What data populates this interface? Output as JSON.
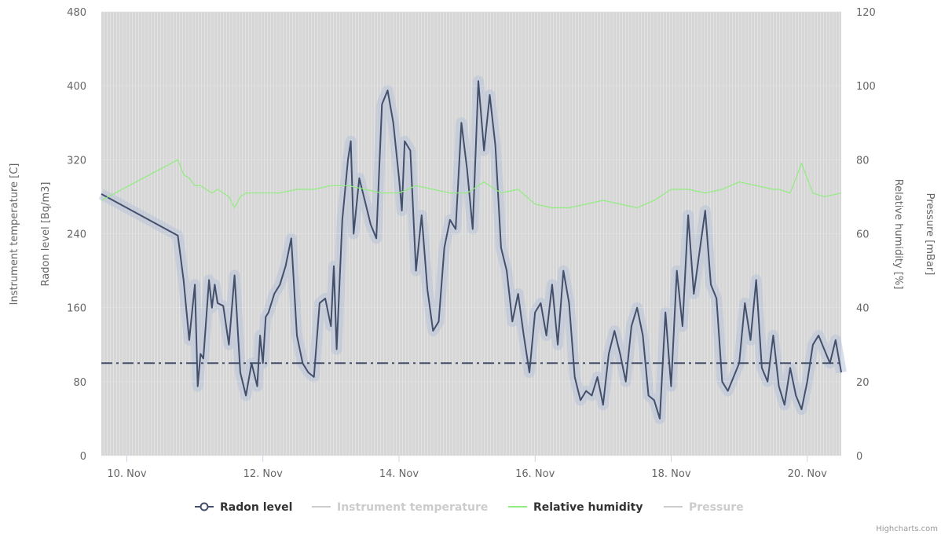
{
  "credits": "Highcharts.com",
  "colors": {
    "radon": "#434f6b",
    "humidity": "#90ed7d",
    "temperature": "#cfcfcf",
    "pressure": "#cfcfcf",
    "plot_background": "#d6d6d6",
    "grid_stripe": "#e3e3e3",
    "band": "#b8c4da",
    "threshold": "#434f6b"
  },
  "chart_data": {
    "type": "line",
    "x_axis": {
      "type": "datetime",
      "min": "2023-11-09T15:00",
      "max": "2023-11-20T12:00",
      "tick_labels": [
        "10. Nov",
        "12. Nov",
        "14. Nov",
        "16. Nov",
        "18. Nov",
        "20. Nov"
      ]
    },
    "y_axes": [
      {
        "id": "radon",
        "title": "Radon level [Bq/m3]",
        "side": "left",
        "min": 0,
        "max": 480,
        "ticks": [
          "0",
          "80",
          "160",
          "240",
          "320",
          "400",
          "480"
        ]
      },
      {
        "id": "temperature",
        "title": "Instrument temperature [C]",
        "side": "left",
        "ticks": []
      },
      {
        "id": "humidity",
        "title": "Relative humidity [%]",
        "side": "right",
        "min": 0,
        "max": 120,
        "ticks": [
          "0",
          "20",
          "40",
          "60",
          "80",
          "100",
          "120"
        ]
      },
      {
        "id": "pressure",
        "title": "Pressure [mBar]",
        "side": "right",
        "ticks": []
      }
    ],
    "threshold": {
      "axis": "radon",
      "value": 100,
      "style": "dash-dot"
    },
    "legend": {
      "position": "bottom-center"
    },
    "series": [
      {
        "name": "Radon level",
        "axis": "radon",
        "visible": true,
        "marker": "circle",
        "x": [
          "2023-11-09T15:00",
          "2023-11-10T18:00",
          "2023-11-10T20:00",
          "2023-11-10T22:00",
          "2023-11-11T00:00",
          "2023-11-11T01:00",
          "2023-11-11T02:00",
          "2023-11-11T03:00",
          "2023-11-11T05:00",
          "2023-11-11T06:00",
          "2023-11-11T07:00",
          "2023-11-11T08:00",
          "2023-11-11T10:00",
          "2023-11-11T12:00",
          "2023-11-11T14:00",
          "2023-11-11T16:00",
          "2023-11-11T18:00",
          "2023-11-11T20:00",
          "2023-11-11T22:00",
          "2023-11-11T23:00",
          "2023-11-12T00:00",
          "2023-11-12T01:00",
          "2023-11-12T02:00",
          "2023-11-12T04:00",
          "2023-11-12T06:00",
          "2023-11-12T08:00",
          "2023-11-12T10:00",
          "2023-11-12T12:00",
          "2023-11-12T14:00",
          "2023-11-12T16:00",
          "2023-11-12T18:00",
          "2023-11-12T20:00",
          "2023-11-12T22:00",
          "2023-11-13T00:00",
          "2023-11-13T01:00",
          "2023-11-13T02:00",
          "2023-11-13T04:00",
          "2023-11-13T06:00",
          "2023-11-13T07:00",
          "2023-11-13T08:00",
          "2023-11-13T10:00",
          "2023-11-13T12:00",
          "2023-11-13T14:00",
          "2023-11-13T16:00",
          "2023-11-13T18:00",
          "2023-11-13T20:00",
          "2023-11-13T22:00",
          "2023-11-14T00:00",
          "2023-11-14T01:00",
          "2023-11-14T02:00",
          "2023-11-14T04:00",
          "2023-11-14T06:00",
          "2023-11-14T08:00",
          "2023-11-14T10:00",
          "2023-11-14T12:00",
          "2023-11-14T14:00",
          "2023-11-14T16:00",
          "2023-11-14T18:00",
          "2023-11-14T20:00",
          "2023-11-14T22:00",
          "2023-11-15T00:00",
          "2023-11-15T02:00",
          "2023-11-15T04:00",
          "2023-11-15T06:00",
          "2023-11-15T08:00",
          "2023-11-15T10:00",
          "2023-11-15T12:00",
          "2023-11-15T14:00",
          "2023-11-15T16:00",
          "2023-11-15T18:00",
          "2023-11-15T20:00",
          "2023-11-15T22:00",
          "2023-11-16T00:00",
          "2023-11-16T02:00",
          "2023-11-16T04:00",
          "2023-11-16T06:00",
          "2023-11-16T08:00",
          "2023-11-16T10:00",
          "2023-11-16T12:00",
          "2023-11-16T14:00",
          "2023-11-16T16:00",
          "2023-11-16T18:00",
          "2023-11-16T20:00",
          "2023-11-16T22:00",
          "2023-11-17T00:00",
          "2023-11-17T02:00",
          "2023-11-17T04:00",
          "2023-11-17T06:00",
          "2023-11-17T08:00",
          "2023-11-17T10:00",
          "2023-11-17T12:00",
          "2023-11-17T14:00",
          "2023-11-17T16:00",
          "2023-11-17T18:00",
          "2023-11-17T20:00",
          "2023-11-17T22:00",
          "2023-11-18T00:00",
          "2023-11-18T02:00",
          "2023-11-18T04:00",
          "2023-11-18T06:00",
          "2023-11-18T08:00",
          "2023-11-18T10:00",
          "2023-11-18T12:00",
          "2023-11-18T14:00",
          "2023-11-18T16:00",
          "2023-11-18T18:00",
          "2023-11-18T20:00",
          "2023-11-18T22:00",
          "2023-11-19T00:00",
          "2023-11-19T02:00",
          "2023-11-19T04:00",
          "2023-11-19T06:00",
          "2023-11-19T08:00",
          "2023-11-19T10:00",
          "2023-11-19T12:00",
          "2023-11-19T14:00",
          "2023-11-19T16:00",
          "2023-11-19T18:00",
          "2023-11-19T20:00",
          "2023-11-19T22:00",
          "2023-11-20T00:00",
          "2023-11-20T02:00",
          "2023-11-20T04:00",
          "2023-11-20T06:00",
          "2023-11-20T08:00",
          "2023-11-20T10:00",
          "2023-11-20T12:00"
        ],
        "values": [
          283,
          238,
          190,
          125,
          185,
          75,
          110,
          105,
          190,
          160,
          185,
          165,
          162,
          120,
          195,
          90,
          65,
          100,
          75,
          130,
          100,
          150,
          155,
          175,
          185,
          205,
          235,
          130,
          100,
          90,
          85,
          165,
          170,
          140,
          205,
          115,
          255,
          320,
          340,
          240,
          300,
          275,
          250,
          235,
          380,
          395,
          360,
          300,
          265,
          340,
          330,
          200,
          260,
          180,
          135,
          145,
          225,
          255,
          245,
          360,
          310,
          245,
          405,
          330,
          390,
          335,
          225,
          200,
          145,
          175,
          130,
          90,
          155,
          165,
          130,
          185,
          120,
          200,
          165,
          85,
          60,
          70,
          65,
          85,
          55,
          110,
          135,
          110,
          80,
          140,
          160,
          130,
          65,
          60,
          40,
          155,
          75,
          200,
          140,
          260,
          175,
          220,
          265,
          185,
          170,
          80,
          70,
          85,
          100,
          165,
          125,
          190,
          95,
          80,
          130,
          75,
          55,
          95,
          65,
          50,
          80,
          120,
          130,
          115,
          100,
          125,
          90
        ]
      },
      {
        "name": "Instrument temperature",
        "axis": "temperature",
        "visible": false,
        "x": [],
        "values": []
      },
      {
        "name": "Relative humidity",
        "axis": "humidity",
        "visible": true,
        "x": [
          "2023-11-09T15:00",
          "2023-11-10T18:00",
          "2023-11-10T20:00",
          "2023-11-10T22:00",
          "2023-11-11T00:00",
          "2023-11-11T02:00",
          "2023-11-11T04:00",
          "2023-11-11T06:00",
          "2023-11-11T08:00",
          "2023-11-11T10:00",
          "2023-11-11T12:00",
          "2023-11-11T14:00",
          "2023-11-11T16:00",
          "2023-11-11T18:00",
          "2023-11-11T20:00",
          "2023-11-12T00:00",
          "2023-11-12T06:00",
          "2023-11-12T12:00",
          "2023-11-12T18:00",
          "2023-11-13T00:00",
          "2023-11-13T06:00",
          "2023-11-13T12:00",
          "2023-11-13T18:00",
          "2023-11-14T00:00",
          "2023-11-14T06:00",
          "2023-11-14T12:00",
          "2023-11-14T18:00",
          "2023-11-15T00:00",
          "2023-11-15T06:00",
          "2023-11-15T12:00",
          "2023-11-15T18:00",
          "2023-11-16T00:00",
          "2023-11-16T06:00",
          "2023-11-16T12:00",
          "2023-11-16T18:00",
          "2023-11-17T00:00",
          "2023-11-17T06:00",
          "2023-11-17T12:00",
          "2023-11-17T18:00",
          "2023-11-18T00:00",
          "2023-11-18T06:00",
          "2023-11-18T12:00",
          "2023-11-18T18:00",
          "2023-11-19T00:00",
          "2023-11-19T06:00",
          "2023-11-19T12:00",
          "2023-11-19T14:00",
          "2023-11-19T18:00",
          "2023-11-19T22:00",
          "2023-11-20T02:00",
          "2023-11-20T06:00",
          "2023-11-20T12:00"
        ],
        "values": [
          69,
          80,
          76,
          75,
          73,
          73,
          72,
          71,
          72,
          71,
          70,
          67,
          70,
          71,
          71,
          71,
          71,
          72,
          72,
          73,
          73,
          72,
          71,
          71,
          73,
          72,
          71,
          71,
          74,
          71,
          72,
          68,
          67,
          67,
          68,
          69,
          68,
          67,
          69,
          72,
          72,
          71,
          72,
          74,
          73,
          72,
          72,
          71,
          79,
          71,
          70,
          71
        ]
      },
      {
        "name": "Pressure",
        "axis": "pressure",
        "visible": false,
        "x": [],
        "values": []
      }
    ]
  }
}
